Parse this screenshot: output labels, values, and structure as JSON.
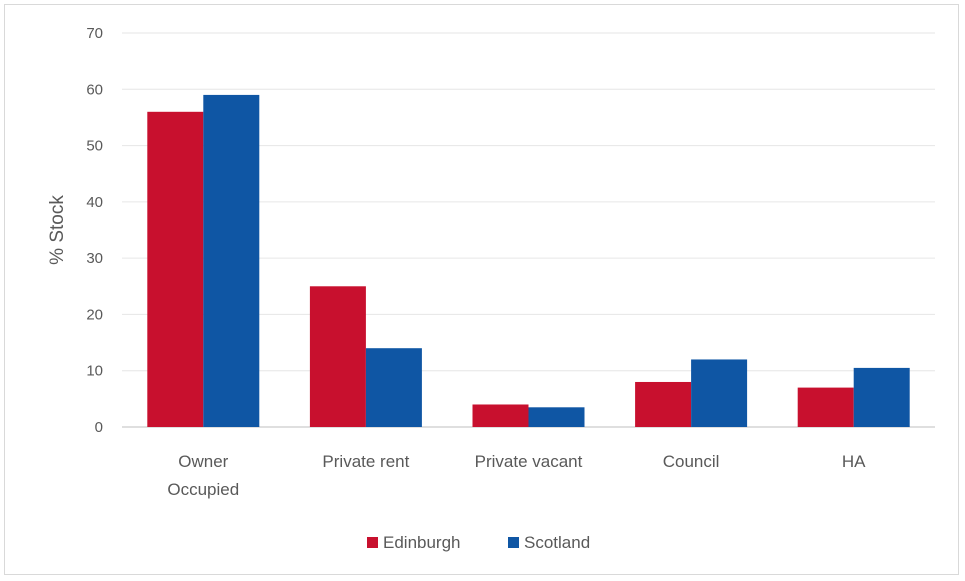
{
  "chart_data": {
    "type": "bar",
    "title": "",
    "xlabel": "",
    "ylabel": "% Stock",
    "ylim": [
      0,
      70
    ],
    "yticks": [
      0,
      10,
      20,
      30,
      40,
      50,
      60,
      70
    ],
    "grid": true,
    "legend_position": "bottom",
    "categories": [
      [
        "Owner",
        "Occupied"
      ],
      [
        "Private rent"
      ],
      [
        "Private vacant"
      ],
      [
        "Council"
      ],
      [
        "HA"
      ]
    ],
    "series": [
      {
        "name": "Edinburgh",
        "color": "#c8102e",
        "values": [
          56,
          25,
          4,
          8,
          7
        ]
      },
      {
        "name": "Scotland",
        "color": "#0f56a4",
        "values": [
          59,
          14,
          3.5,
          12,
          10.5
        ]
      }
    ]
  }
}
